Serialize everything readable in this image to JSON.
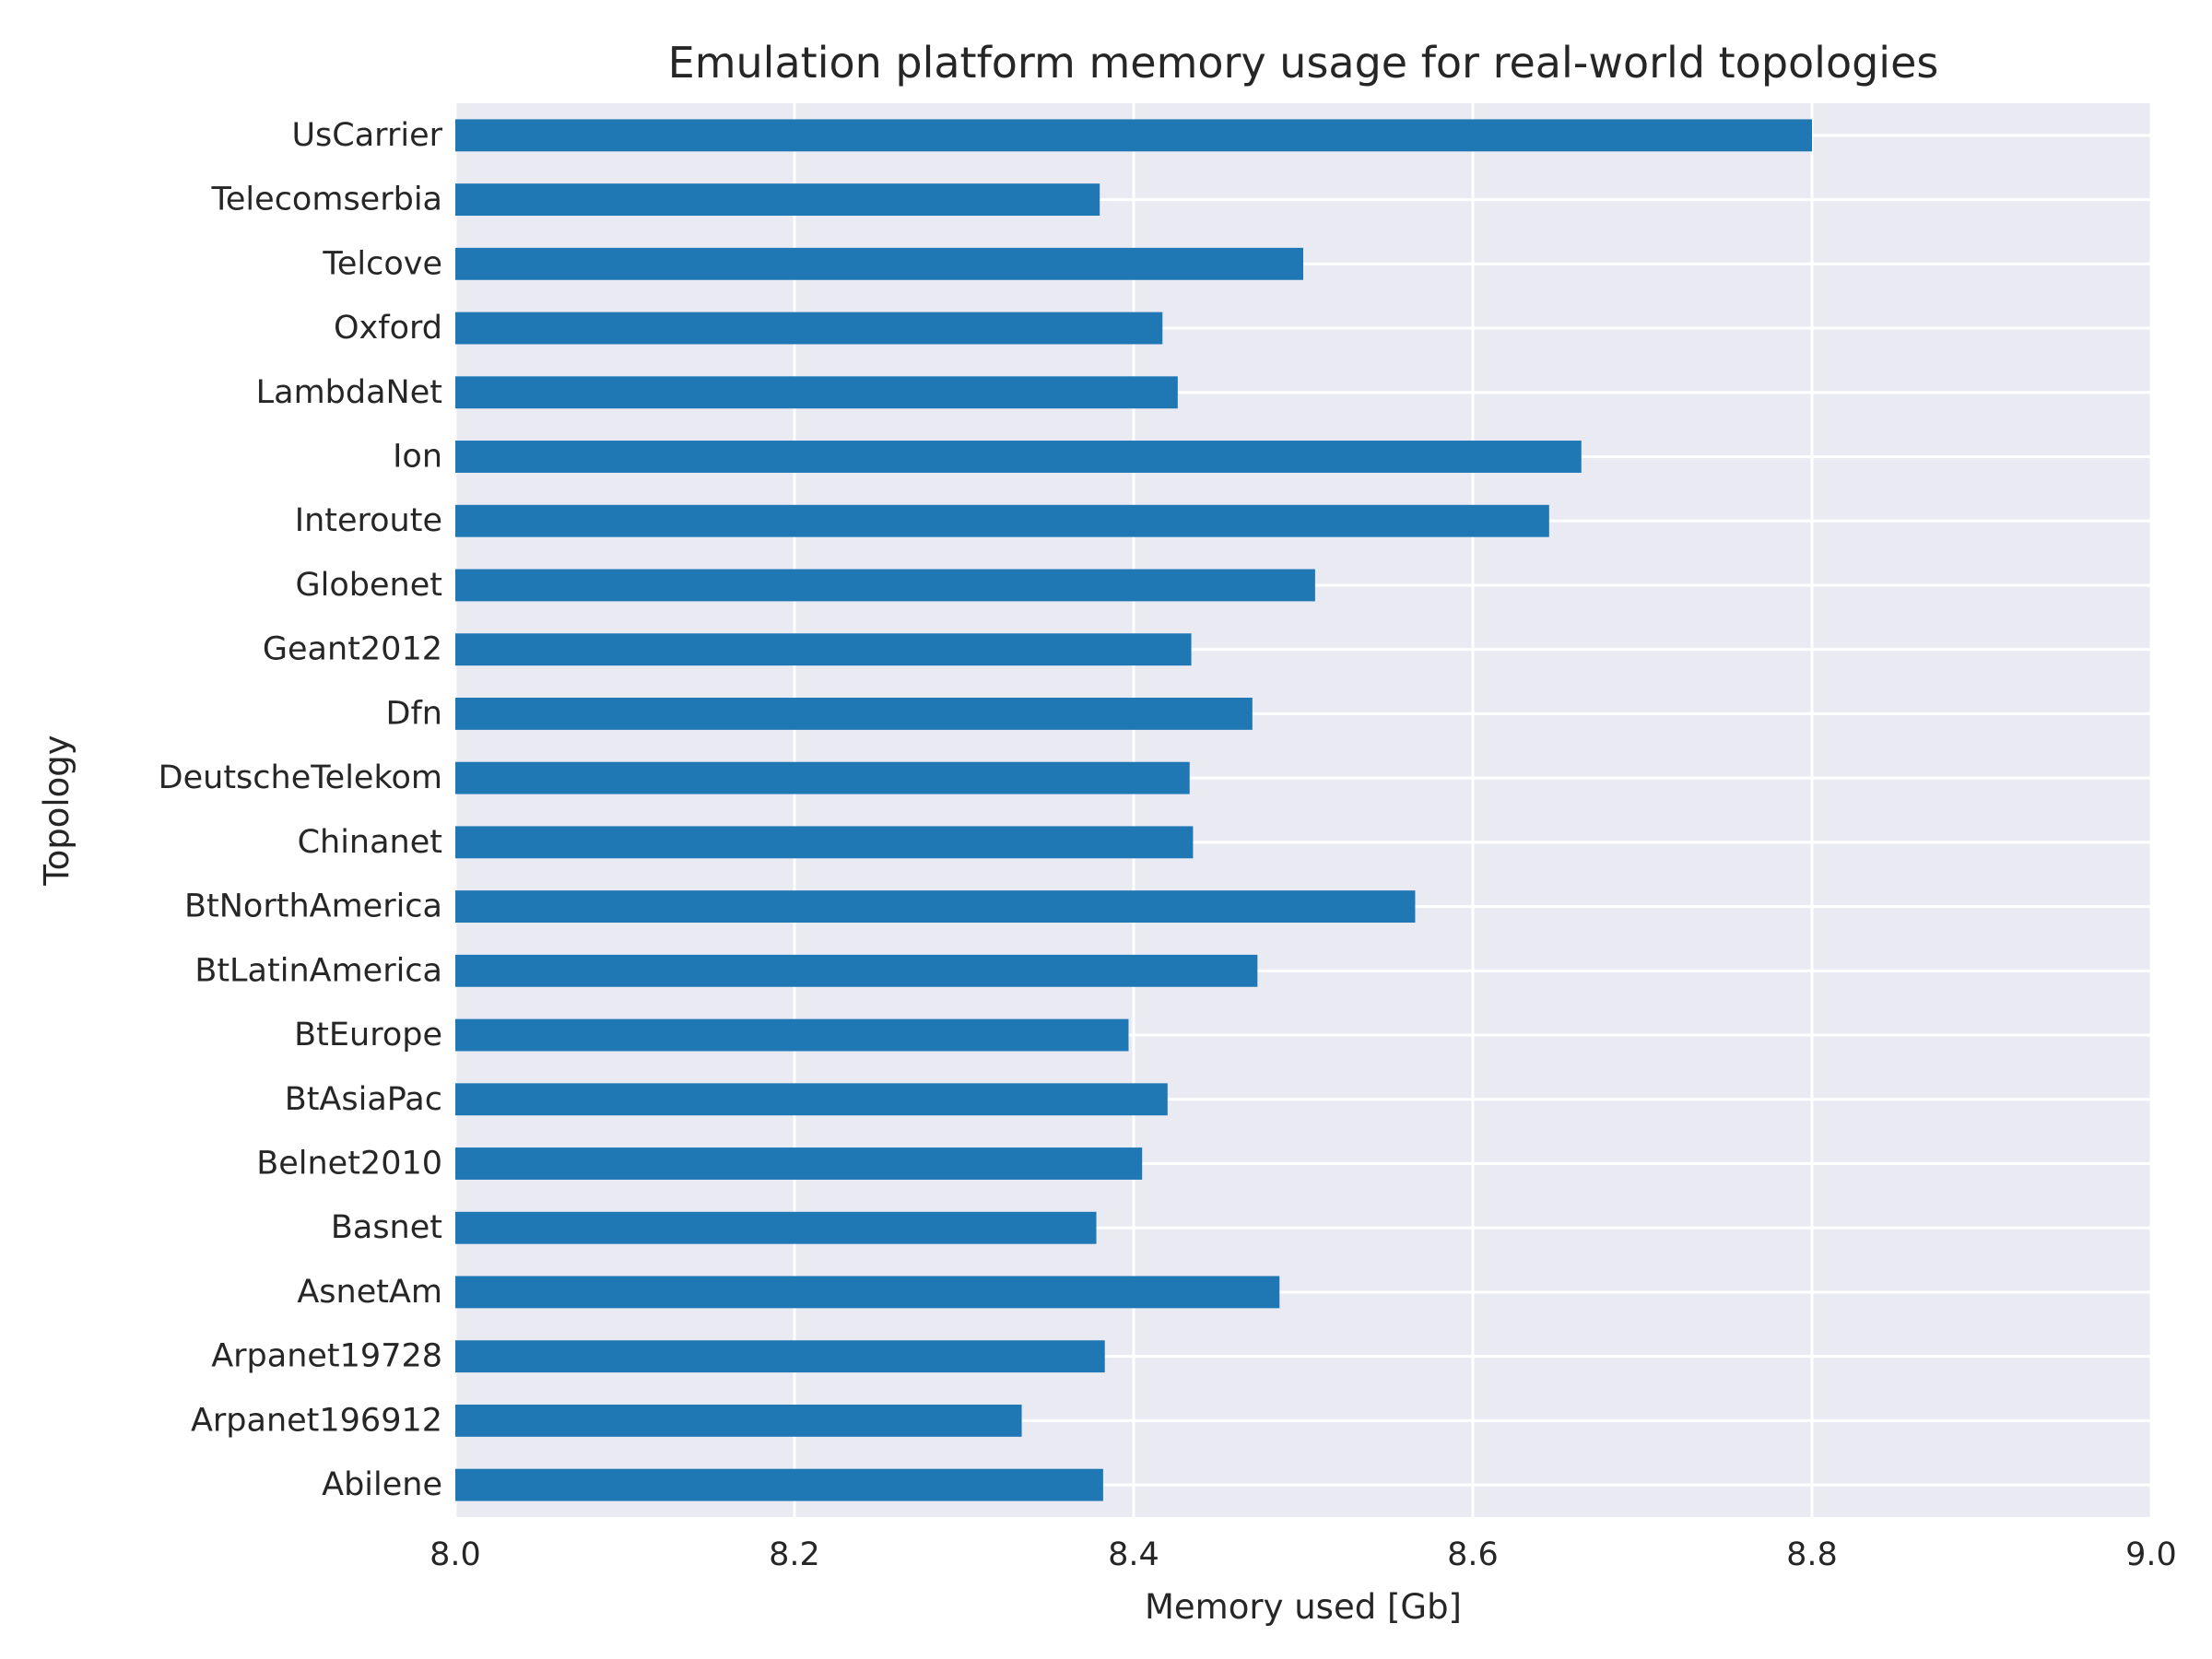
{
  "chart_data": {
    "type": "bar",
    "orientation": "horizontal",
    "title": "Emulation platform memory usage for real-world topologies",
    "xlabel": "Memory used [Gb]",
    "ylabel": "Topology",
    "xlim": [
      8.0,
      9.0
    ],
    "xticks": [
      "8.0",
      "8.2",
      "8.4",
      "8.6",
      "8.8",
      "9.0"
    ],
    "grid": true,
    "bar_color": "#1f77b4",
    "background_color": "#eaeaf2",
    "categories": [
      "UsCarrier",
      "Telecomserbia",
      "Telcove",
      "Oxford",
      "LambdaNet",
      "Ion",
      "Interoute",
      "Globenet",
      "Geant2012",
      "Dfn",
      "DeutscheTelekom",
      "Chinanet",
      "BtNorthAmerica",
      "BtLatinAmerica",
      "BtEurope",
      "BtAsiaPac",
      "Belnet2010",
      "Basnet",
      "AsnetAm",
      "Arpanet19728",
      "Arpanet196912",
      "Abilene"
    ],
    "values": [
      8.8,
      8.38,
      8.5,
      8.417,
      8.426,
      8.664,
      8.645,
      8.507,
      8.434,
      8.47,
      8.433,
      8.435,
      8.566,
      8.473,
      8.397,
      8.42,
      8.405,
      8.378,
      8.486,
      8.383,
      8.334,
      8.382
    ]
  }
}
